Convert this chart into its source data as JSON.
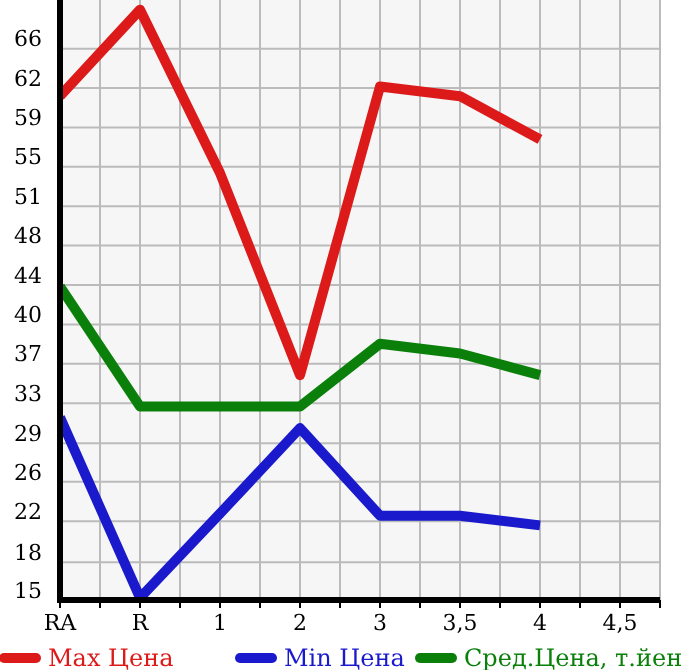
{
  "chart_data": {
    "type": "line",
    "categories": [
      "RA",
      "R",
      "1",
      "2",
      "3",
      "3,5",
      "4",
      "4,5"
    ],
    "series": [
      {
        "name": "Max Цена",
        "color": "#dd1a1a",
        "values": [
          61.6,
          69.6,
          54.5,
          35.8,
          62.5,
          61.6,
          57.6,
          null
        ]
      },
      {
        "name": "Min Цена",
        "color": "#1a1acc",
        "values": [
          31.9,
          15.2,
          23.0,
          30.9,
          22.8,
          22.8,
          21.9,
          null
        ]
      },
      {
        "name": "Сред.Цена, т.йен",
        "color": "#0a800a",
        "values": [
          44.0,
          32.9,
          32.9,
          32.9,
          38.7,
          37.8,
          35.8,
          null
        ]
      }
    ],
    "ylim": [
      15,
      70.5
    ],
    "yticks": [
      15,
      {
        "value": 18.49,
        "label": "18"
      },
      {
        "value": 22.29,
        "label": "22"
      },
      {
        "value": 25.93,
        "label": "26"
      },
      {
        "value": 29.49,
        "label": "29"
      },
      {
        "value": 33.21,
        "label": "33"
      },
      {
        "value": 36.86,
        "label": "37"
      },
      {
        "value": 40.49,
        "label": "40"
      },
      {
        "value": 44.14,
        "label": "44"
      },
      {
        "value": 47.79,
        "label": "48"
      },
      {
        "value": 51.43,
        "label": "51"
      },
      {
        "value": 55.07,
        "label": "55"
      },
      {
        "value": 58.71,
        "label": "59"
      },
      {
        "value": 62.36,
        "label": "62"
      },
      {
        "value": 66,
        "label": "66"
      }
    ],
    "grid": true,
    "legend": "bottom",
    "marker": "none",
    "line_style": "solid"
  }
}
